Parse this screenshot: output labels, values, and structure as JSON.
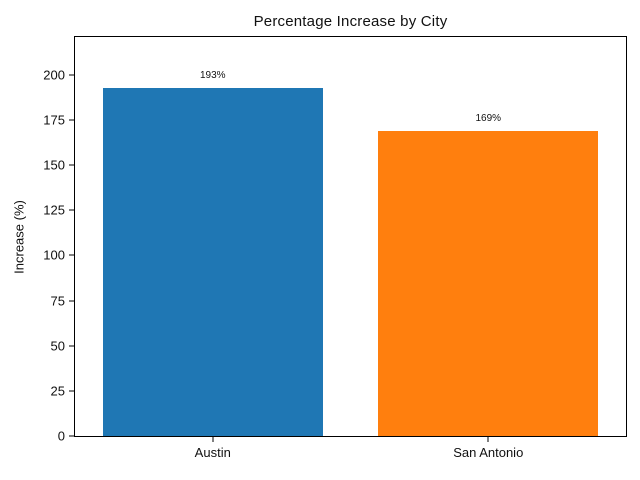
{
  "chart_data": {
    "type": "bar",
    "title": "Percentage Increase by City",
    "categories": [
      "Austin",
      "San Antonio"
    ],
    "values": [
      193,
      169
    ],
    "value_labels": [
      "193%",
      "169%"
    ],
    "bar_colors": [
      "#1f77b4",
      "#ff7f0e"
    ],
    "xlabel": "",
    "ylabel": "Increase (%)",
    "ylim": [
      0,
      221
    ],
    "yticks": [
      0,
      25,
      50,
      75,
      100,
      125,
      150,
      175,
      200
    ],
    "grid": false,
    "legend": "none",
    "background_color": "#ffffff",
    "spine_color": "#000000",
    "bar_width_fraction": 0.8
  }
}
